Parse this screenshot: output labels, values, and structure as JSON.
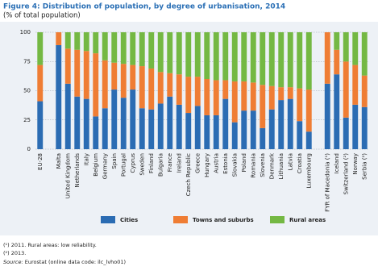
{
  "chart_data": {
    "type": "stacked-bar",
    "title": "Figure 4: Distribution of population, by degree of urbanisation, 2014",
    "subtitle": "(% of total population)",
    "categories": [
      "EU-28",
      null,
      "Malta",
      "United Kingdom",
      "Netherlands",
      "Italy",
      "Belgium",
      "Germany",
      "Spain",
      "Portugal",
      "Cyprus",
      "Sweden",
      "Finland",
      "Bulgaria",
      "France",
      "Ireland",
      "Czech Republic",
      "Greece",
      "Hungary",
      "Austria",
      "Estonia",
      "Slovakia",
      "Poland",
      "Romania",
      "Slovenia",
      "Denmark",
      "Lithuania",
      "Latvia",
      "Croatia",
      "Luxembourg",
      null,
      "FYR of Macedonia (¹)",
      "Iceland",
      "Switzerland (²)",
      "Norway",
      "Serbia (²)"
    ],
    "series": [
      {
        "name": "Cities",
        "color": "#2b6cb3",
        "values": [
          41,
          null,
          89,
          56,
          45,
          43,
          28,
          35,
          51,
          44,
          51,
          35,
          34,
          39,
          45,
          38,
          31,
          37,
          29,
          29,
          43,
          23,
          33,
          33,
          18,
          34,
          42,
          43,
          24,
          15,
          null,
          56,
          64,
          27,
          38,
          36
        ]
      },
      {
        "name": "Towns and suburbs",
        "color": "#ef7d34",
        "values": [
          31,
          null,
          11,
          30,
          40,
          41,
          54,
          41,
          23,
          29,
          21,
          36,
          35,
          27,
          20,
          26,
          31,
          25,
          31,
          30,
          16,
          35,
          25,
          24,
          37,
          20,
          11,
          10,
          28,
          36,
          null,
          44,
          21,
          48,
          34,
          27
        ]
      },
      {
        "name": "Rural areas",
        "color": "#74b843",
        "values": [
          28,
          null,
          0,
          14,
          15,
          16,
          18,
          24,
          26,
          27,
          28,
          29,
          31,
          34,
          35,
          36,
          38,
          38,
          40,
          41,
          41,
          42,
          42,
          43,
          45,
          46,
          47,
          47,
          48,
          49,
          null,
          0,
          15,
          25,
          28,
          37
        ]
      }
    ],
    "ylim": [
      0,
      100
    ],
    "yticks": [
      0,
      25,
      50,
      75,
      100
    ],
    "grid": true,
    "footnotes": [
      "(¹) 2011. Rural areas: low reliability.",
      "(²) 2013."
    ],
    "source_label": "Source:",
    "source_text": "Eurostat (online data code: ilc_lvho01)"
  }
}
